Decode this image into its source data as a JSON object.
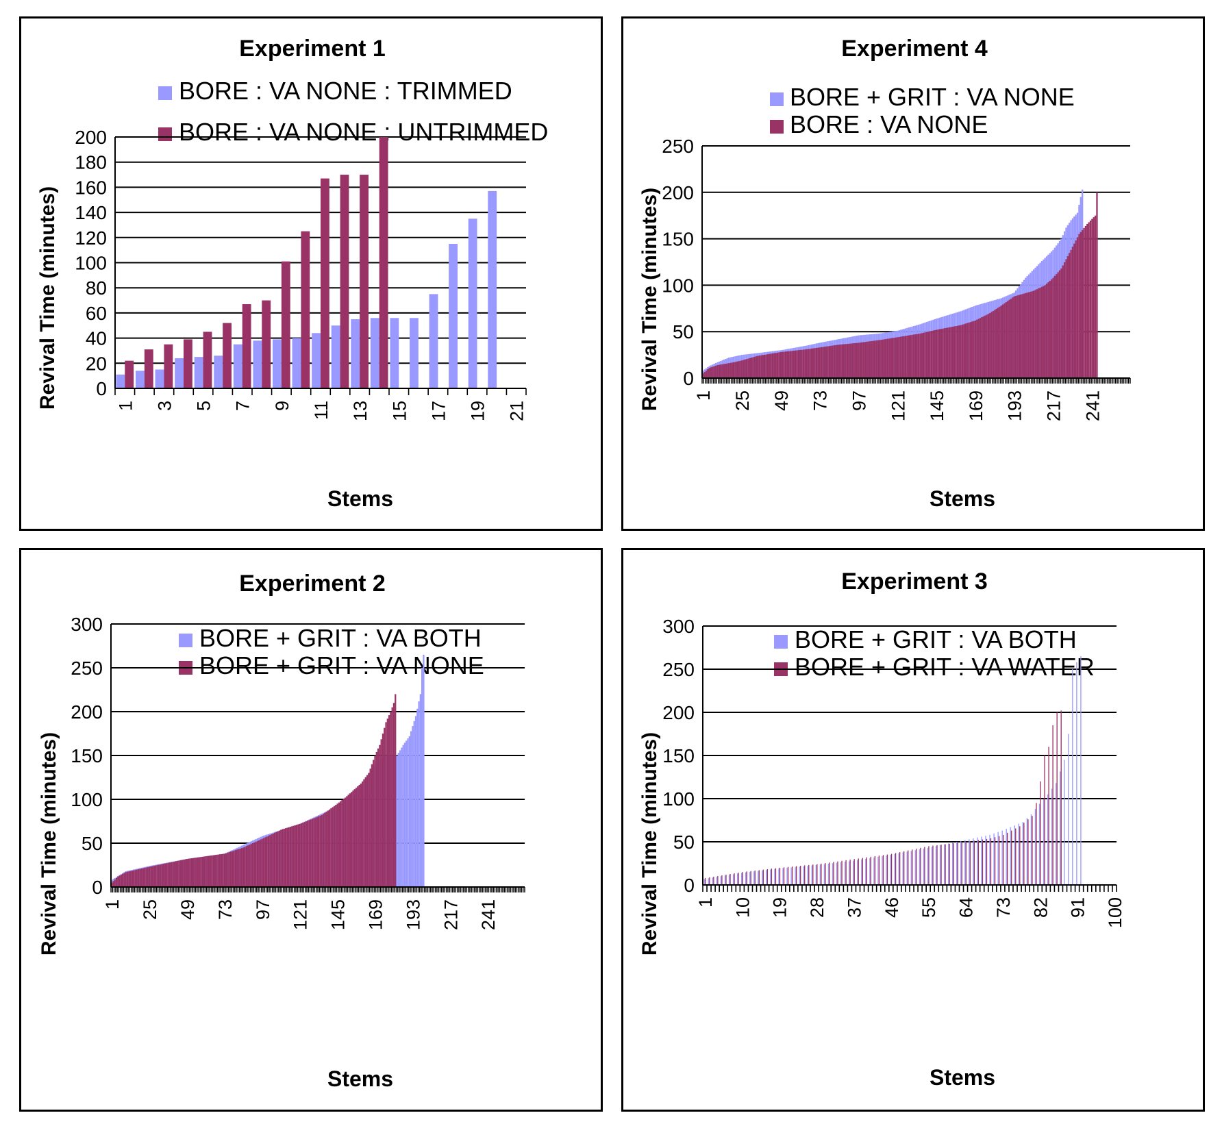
{
  "colors": {
    "light": "#9999ff",
    "dark": "#993366",
    "grid": "#000000"
  },
  "chart_data": [
    {
      "id": "exp1",
      "type": "bar",
      "title": "Experiment 1",
      "xlabel": "Stems",
      "ylabel": "Revival Time (minutes)",
      "ylim": [
        0,
        200
      ],
      "yticks": [
        0,
        20,
        40,
        60,
        80,
        100,
        120,
        140,
        160,
        180,
        200
      ],
      "xticks": [
        1,
        3,
        5,
        7,
        9,
        11,
        13,
        15,
        17,
        19,
        21
      ],
      "n_categories": 21,
      "grid": true,
      "series": [
        {
          "name": "BORE : VA NONE : TRIMMED",
          "color": "light",
          "values": [
            11,
            14,
            15,
            24,
            25,
            26,
            35,
            38,
            39,
            40,
            44,
            50,
            55,
            56,
            56,
            56,
            75,
            115,
            135,
            157
          ]
        },
        {
          "name": "BORE : VA NONE : UNTRIMMED",
          "color": "dark",
          "values": [
            22,
            31,
            35,
            39,
            45,
            52,
            67,
            70,
            101,
            125,
            167,
            170,
            170,
            200
          ]
        }
      ]
    },
    {
      "id": "exp4",
      "type": "bar",
      "title": "Experiment 4",
      "xlabel": "Stems",
      "ylabel": "Revival Time (minutes)",
      "ylim": [
        0,
        250
      ],
      "yticks": [
        0,
        50,
        100,
        150,
        200,
        250
      ],
      "xticks": [
        1,
        25,
        49,
        73,
        97,
        121,
        145,
        169,
        193,
        217,
        241
      ],
      "n_categories": 264,
      "grid": true,
      "series": [
        {
          "name": "BORE + GRIT : VA NONE",
          "color": "light",
          "n": 235,
          "points": [
            [
              1,
              8
            ],
            [
              5,
              13
            ],
            [
              10,
              17
            ],
            [
              17,
              22
            ],
            [
              25,
              25
            ],
            [
              35,
              27
            ],
            [
              49,
              30
            ],
            [
              65,
              35
            ],
            [
              73,
              38
            ],
            [
              85,
              42
            ],
            [
              97,
              46
            ],
            [
              110,
              48
            ],
            [
              121,
              51
            ],
            [
              135,
              58
            ],
            [
              145,
              64
            ],
            [
              160,
              72
            ],
            [
              169,
              78
            ],
            [
              185,
              86
            ],
            [
              193,
              92
            ],
            [
              200,
              108
            ],
            [
              210,
              126
            ],
            [
              217,
              138
            ],
            [
              222,
              150
            ],
            [
              225,
              162
            ],
            [
              228,
              170
            ],
            [
              232,
              178
            ],
            [
              234,
              195
            ],
            [
              235,
              203
            ]
          ]
        },
        {
          "name": "BORE : VA NONE",
          "color": "dark",
          "n": 244,
          "points": [
            [
              1,
              5
            ],
            [
              5,
              11
            ],
            [
              10,
              14
            ],
            [
              20,
              17
            ],
            [
              25,
              19
            ],
            [
              35,
              24
            ],
            [
              49,
              28
            ],
            [
              65,
              31
            ],
            [
              73,
              33
            ],
            [
              85,
              36
            ],
            [
              97,
              38
            ],
            [
              110,
              41
            ],
            [
              121,
              44
            ],
            [
              135,
              48
            ],
            [
              145,
              52
            ],
            [
              160,
              57
            ],
            [
              169,
              62
            ],
            [
              178,
              70
            ],
            [
              185,
              78
            ],
            [
              193,
              88
            ],
            [
              205,
              94
            ],
            [
              212,
              100
            ],
            [
              217,
              108
            ],
            [
              222,
              118
            ],
            [
              228,
              138
            ],
            [
              233,
              155
            ],
            [
              238,
              166
            ],
            [
              243,
              175
            ],
            [
              244,
              200
            ]
          ]
        }
      ]
    },
    {
      "id": "exp2",
      "type": "bar",
      "title": "Experiment 2",
      "xlabel": "Stems",
      "ylabel": "Revival Time (minutes)",
      "ylim": [
        0,
        300
      ],
      "yticks": [
        0,
        50,
        100,
        150,
        200,
        250,
        300
      ],
      "xticks": [
        1,
        25,
        49,
        73,
        97,
        121,
        145,
        169,
        193,
        217,
        241
      ],
      "n_categories": 264,
      "grid": true,
      "series": [
        {
          "name": "BORE + GRIT : VA BOTH",
          "color": "light",
          "n": 200,
          "points": [
            [
              1,
              8
            ],
            [
              10,
              18
            ],
            [
              25,
              24
            ],
            [
              49,
              32
            ],
            [
              73,
              38
            ],
            [
              97,
              58
            ],
            [
              121,
              72
            ],
            [
              145,
              92
            ],
            [
              160,
              118
            ],
            [
              169,
              140
            ],
            [
              175,
              150
            ],
            [
              183,
              150
            ],
            [
              187,
              162
            ],
            [
              191,
              172
            ],
            [
              195,
              195
            ],
            [
              198,
              220
            ],
            [
              199,
              250
            ],
            [
              200,
              265
            ]
          ]
        },
        {
          "name": "BORE + GRIT : VA NONE",
          "color": "dark",
          "n": 182,
          "points": [
            [
              1,
              5
            ],
            [
              5,
              12
            ],
            [
              10,
              17
            ],
            [
              25,
              23
            ],
            [
              49,
              32
            ],
            [
              73,
              38
            ],
            [
              85,
              45
            ],
            [
              97,
              55
            ],
            [
              110,
              66
            ],
            [
              121,
              72
            ],
            [
              135,
              82
            ],
            [
              145,
              95
            ],
            [
              150,
              102
            ],
            [
              160,
              118
            ],
            [
              165,
              130
            ],
            [
              169,
              150
            ],
            [
              172,
              162
            ],
            [
              176,
              188
            ],
            [
              179,
              200
            ],
            [
              181,
              210
            ],
            [
              182,
              220
            ]
          ]
        }
      ]
    },
    {
      "id": "exp3",
      "type": "bar",
      "title": "Experiment 3",
      "xlabel": "Stems",
      "ylabel": "Revival Time (minutes)",
      "ylim": [
        0,
        300
      ],
      "yticks": [
        0,
        50,
        100,
        150,
        200,
        250,
        300
      ],
      "xticks": [
        1,
        10,
        19,
        28,
        37,
        46,
        55,
        64,
        73,
        82,
        91,
        100
      ],
      "n_categories": 100,
      "grid": true,
      "series": [
        {
          "name": "BORE + GRIT : VA BOTH",
          "color": "light",
          "n": 92,
          "points": [
            [
              1,
              7
            ],
            [
              10,
              14
            ],
            [
              19,
              19
            ],
            [
              28,
              23
            ],
            [
              37,
              28
            ],
            [
              46,
              35
            ],
            [
              55,
              43
            ],
            [
              64,
              52
            ],
            [
              70,
              58
            ],
            [
              73,
              63
            ],
            [
              78,
              73
            ],
            [
              80,
              82
            ],
            [
              82,
              94
            ],
            [
              84,
              105
            ],
            [
              86,
              118
            ],
            [
              88,
              145
            ],
            [
              89,
              175
            ],
            [
              90,
              250
            ],
            [
              91,
              258
            ],
            [
              92,
              265
            ]
          ]
        },
        {
          "name": "BORE + GRIT : VA WATER",
          "color": "dark",
          "n": 87,
          "points": [
            [
              1,
              8
            ],
            [
              10,
              15
            ],
            [
              19,
              20
            ],
            [
              28,
              24
            ],
            [
              37,
              30
            ],
            [
              46,
              36
            ],
            [
              55,
              45
            ],
            [
              64,
              50
            ],
            [
              70,
              54
            ],
            [
              73,
              58
            ],
            [
              77,
              68
            ],
            [
              80,
              80
            ],
            [
              81,
              95
            ],
            [
              82,
              120
            ],
            [
              83,
              150
            ],
            [
              84,
              160
            ],
            [
              85,
              185
            ],
            [
              86,
              200
            ],
            [
              87,
              202
            ]
          ]
        }
      ]
    }
  ]
}
